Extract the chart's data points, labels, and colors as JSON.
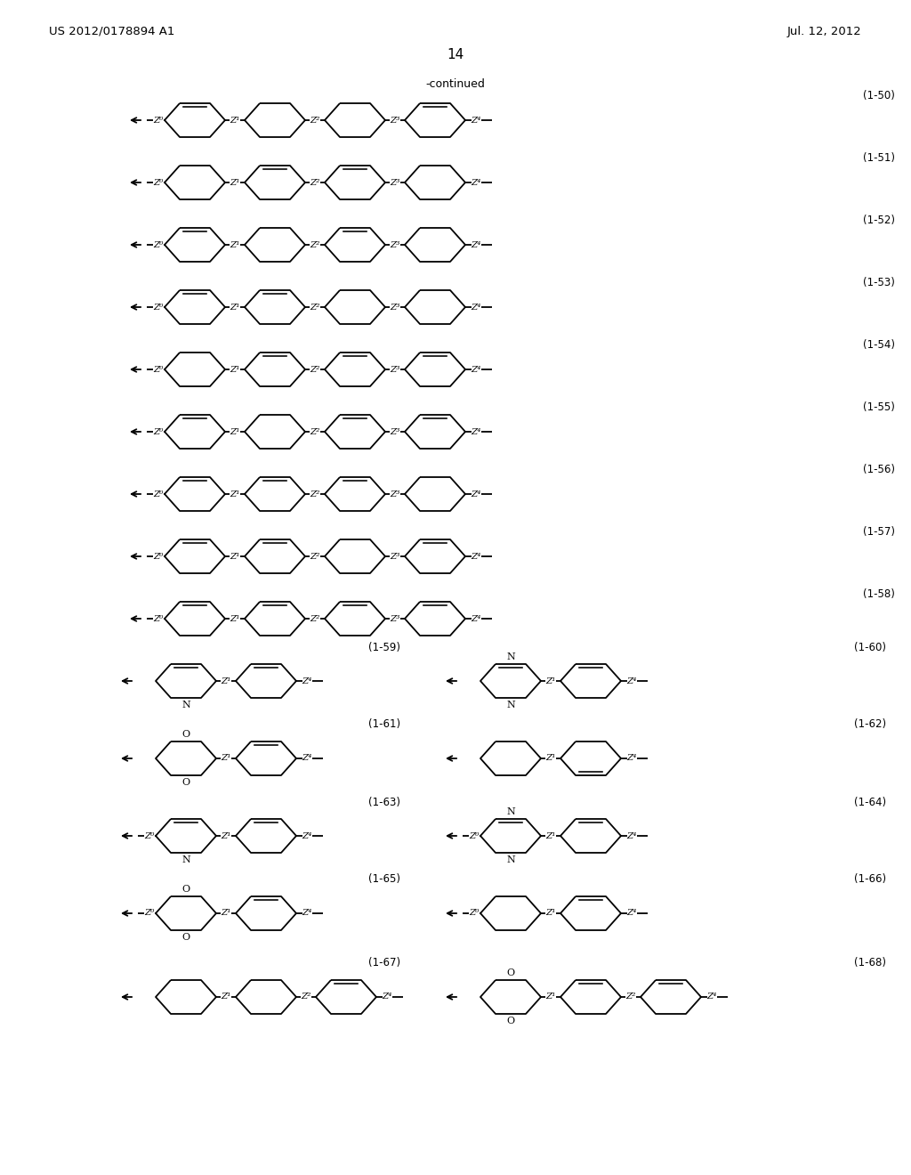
{
  "page_header_left": "US 2012/0178894 A1",
  "page_header_right": "Jul. 12, 2012",
  "page_number": "14",
  "continued_text": "-continued",
  "background_color": "#ffffff",
  "text_color": "#000000",
  "line_color": "#000000"
}
